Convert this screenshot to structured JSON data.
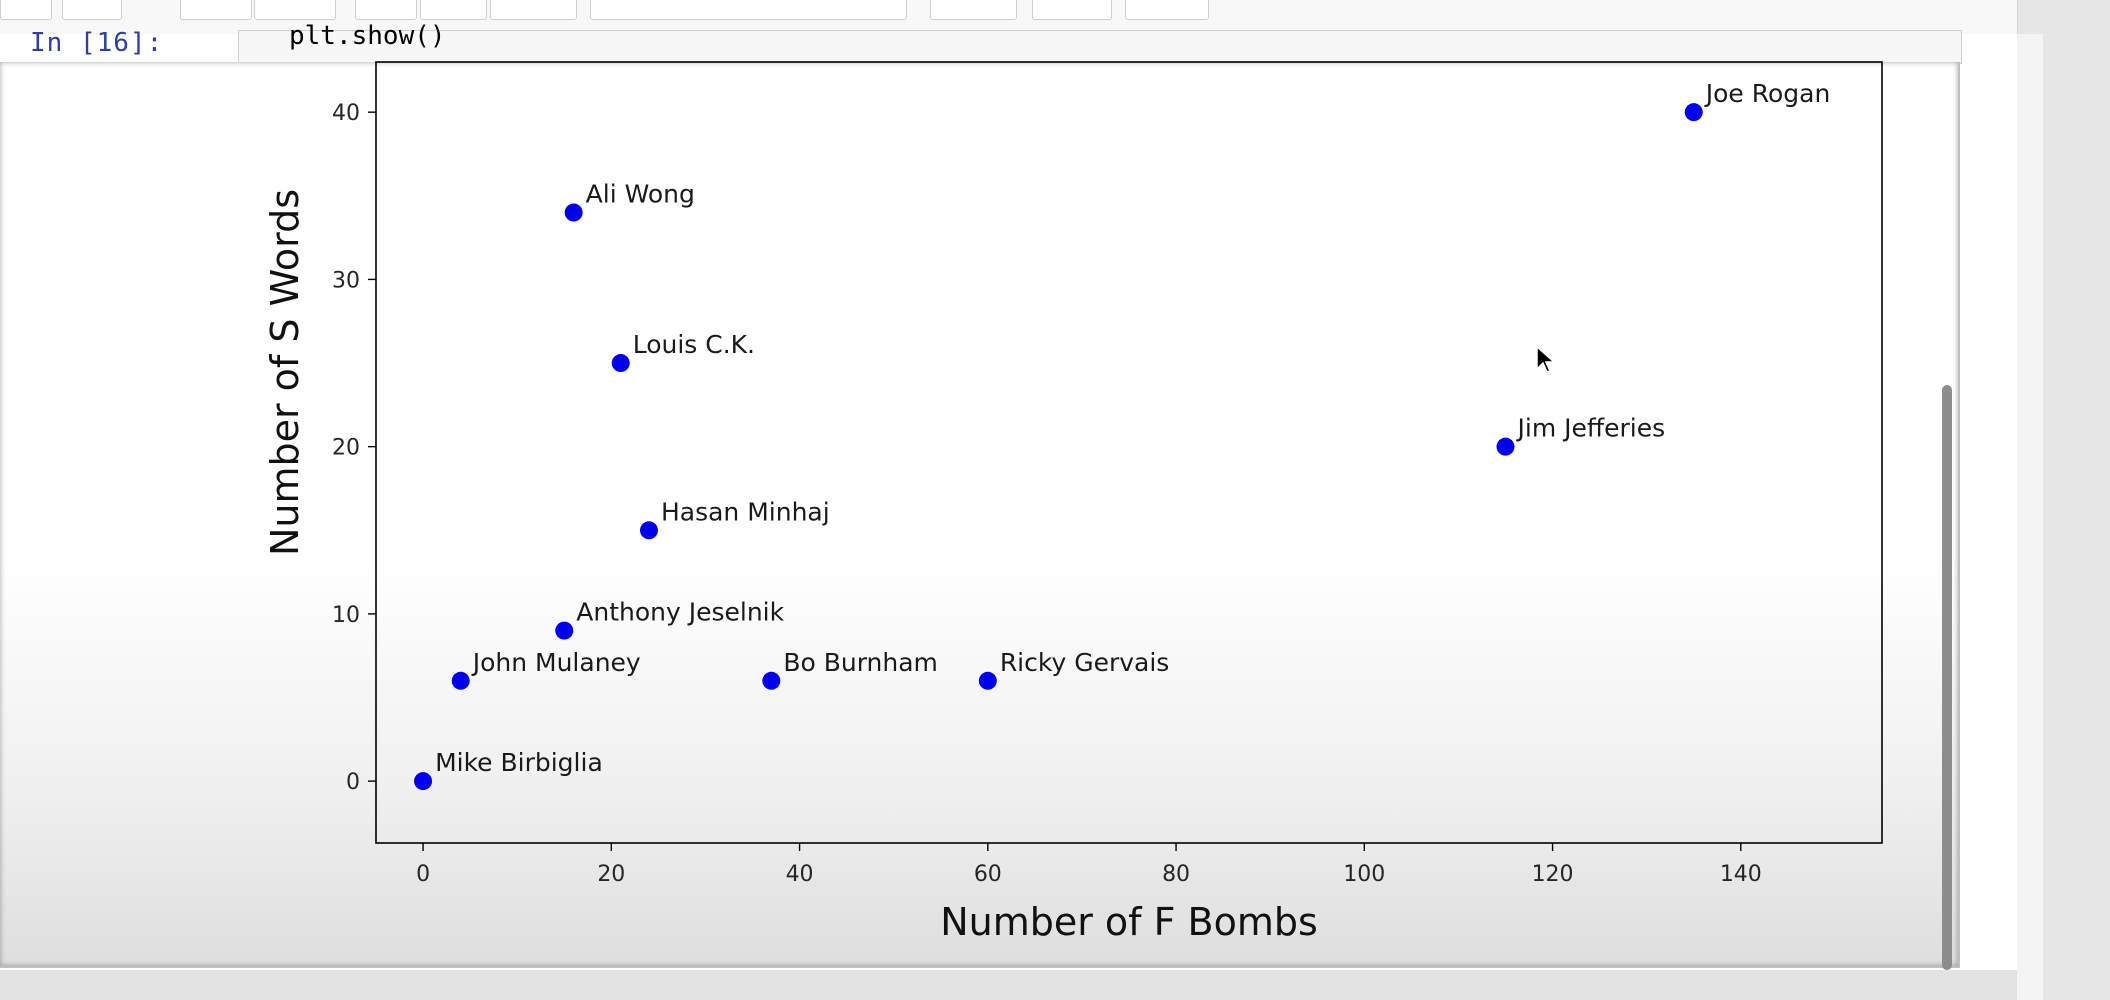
{
  "notebook": {
    "input_prompt": "In [16]:",
    "input_code": "plt.show()"
  },
  "chart_data": {
    "type": "scatter",
    "xlabel": "Number of F Bombs",
    "ylabel": "Number of S Words",
    "xlim": [
      -5,
      155
    ],
    "ylim": [
      -3.7,
      43
    ],
    "x_ticks": [
      0,
      20,
      40,
      60,
      80,
      100,
      120,
      140
    ],
    "y_ticks": [
      0,
      10,
      20,
      30,
      40
    ],
    "grid": false,
    "point_color": "#0000ee",
    "points": [
      {
        "label": "Joe Rogan",
        "x": 135,
        "y": 40
      },
      {
        "label": "Ali Wong",
        "x": 16,
        "y": 34
      },
      {
        "label": "Louis C.K.",
        "x": 21,
        "y": 25
      },
      {
        "label": "Jim Jefferies",
        "x": 115,
        "y": 20
      },
      {
        "label": "Hasan Minhaj",
        "x": 24,
        "y": 15
      },
      {
        "label": "Anthony Jeselnik",
        "x": 15,
        "y": 9
      },
      {
        "label": "John Mulaney",
        "x": 4,
        "y": 6
      },
      {
        "label": "Bo Burnham",
        "x": 37,
        "y": 6
      },
      {
        "label": "Ricky Gervais",
        "x": 60,
        "y": 6
      },
      {
        "label": "Mike Birbiglia",
        "x": 0,
        "y": 0
      }
    ]
  }
}
